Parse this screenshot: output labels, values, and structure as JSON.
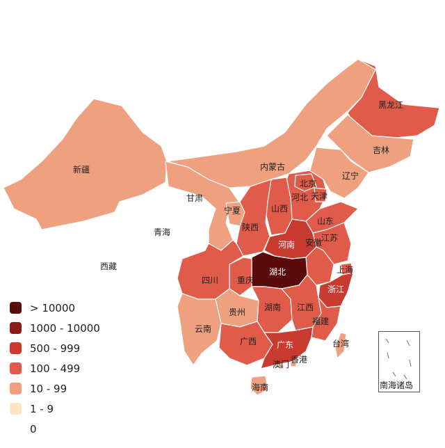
{
  "colors": {
    "gt10000": "#5a0c0c",
    "r1000_10000": "#8a1c1c",
    "r500_999": "#c93a30",
    "r100_499": "#e05b49",
    "r10_99": "#eea07f",
    "r1_9": "#fde4c4",
    "zero": "#ffffff"
  },
  "legend": [
    {
      "label": "> 10000",
      "color": "#5a0c0c"
    },
    {
      "label": "1000 - 10000",
      "color": "#8a1c1c"
    },
    {
      "label": "500 - 999",
      "color": "#c93a30"
    },
    {
      "label": "100 - 499",
      "color": "#e05b49"
    },
    {
      "label": "10 - 99",
      "color": "#eea07f"
    },
    {
      "label": "1 - 9",
      "color": "#fde4c4"
    },
    {
      "label": "0",
      "color": "#ffffff"
    }
  ],
  "provinces": {
    "xinjiang": "新疆",
    "xizang": "西藏",
    "qinghai": "青海",
    "gansu": "甘肃",
    "neimenggu": "内蒙古",
    "heilongjiang": "黑龙江",
    "jilin": "吉林",
    "liaoning": "辽宁",
    "beijing": "北京",
    "tianjin": "天津",
    "hebei": "河北",
    "shanxi": "山西",
    "ningxia": "宁夏",
    "shaanxi": "陕西",
    "shandong": "山东",
    "henan": "河南",
    "jiangsu": "江苏",
    "anhui": "安徽",
    "shanghai": "上海",
    "hubei": "湖北",
    "sichuan": "四川",
    "chongqing": "重庆",
    "zhejiang": "浙江",
    "guizhou": "贵州",
    "hunan": "湖南",
    "jiangxi": "江西",
    "fujian": "福建",
    "yunnan": "云南",
    "guangxi": "广西",
    "guangdong": "广东",
    "taiwan": "台湾",
    "aomen": "澳门",
    "xianggang": "香港",
    "hainan": "海南"
  },
  "inset": {
    "label": "南海诸岛"
  }
}
